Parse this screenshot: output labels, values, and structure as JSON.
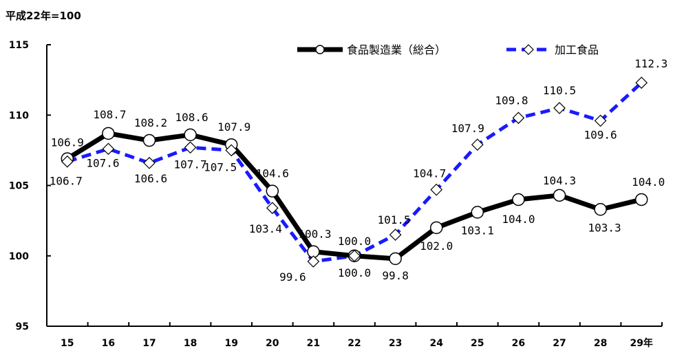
{
  "unit_label": "平成22年=100",
  "chart_data": {
    "type": "line",
    "x": [
      "15",
      "16",
      "17",
      "18",
      "19",
      "20",
      "21",
      "22",
      "23",
      "24",
      "25",
      "26",
      "27",
      "28",
      "29年"
    ],
    "series": [
      {
        "name": "食品製造業（総合）",
        "color": "#000000",
        "marker": "circle",
        "line": "solid",
        "values": [
          106.9,
          108.7,
          108.2,
          108.6,
          107.9,
          104.6,
          100.3,
          100.0,
          99.8,
          102.0,
          103.1,
          104.0,
          104.3,
          103.3,
          104.0
        ],
        "labels": [
          "106.9",
          "108.7",
          "108.2",
          "108.6",
          "107.9",
          "104.6",
          "100.3",
          "100.0",
          "99.8",
          "102.0",
          "103.1",
          "104.0",
          "104.3",
          "103.3",
          "104.0"
        ]
      },
      {
        "name": "加工食品",
        "color": "#1a1aff",
        "marker": "diamond",
        "line": "dashed",
        "values": [
          106.7,
          107.6,
          106.6,
          107.7,
          107.5,
          103.4,
          99.6,
          100.0,
          101.5,
          104.7,
          107.9,
          109.8,
          110.5,
          109.6,
          112.3
        ],
        "labels": [
          "106.7",
          "107.6",
          "106.6",
          "107.7",
          "107.5",
          "103.4",
          "99.6",
          "100.0",
          "101.5",
          "104.7",
          "107.9",
          "109.8",
          "110.5",
          "109.6",
          "112.3"
        ]
      }
    ],
    "ylim": [
      95,
      115
    ],
    "yticks": [
      "95",
      "100",
      "105",
      "110",
      "115"
    ],
    "grid": false,
    "legend_position": "top-right"
  }
}
